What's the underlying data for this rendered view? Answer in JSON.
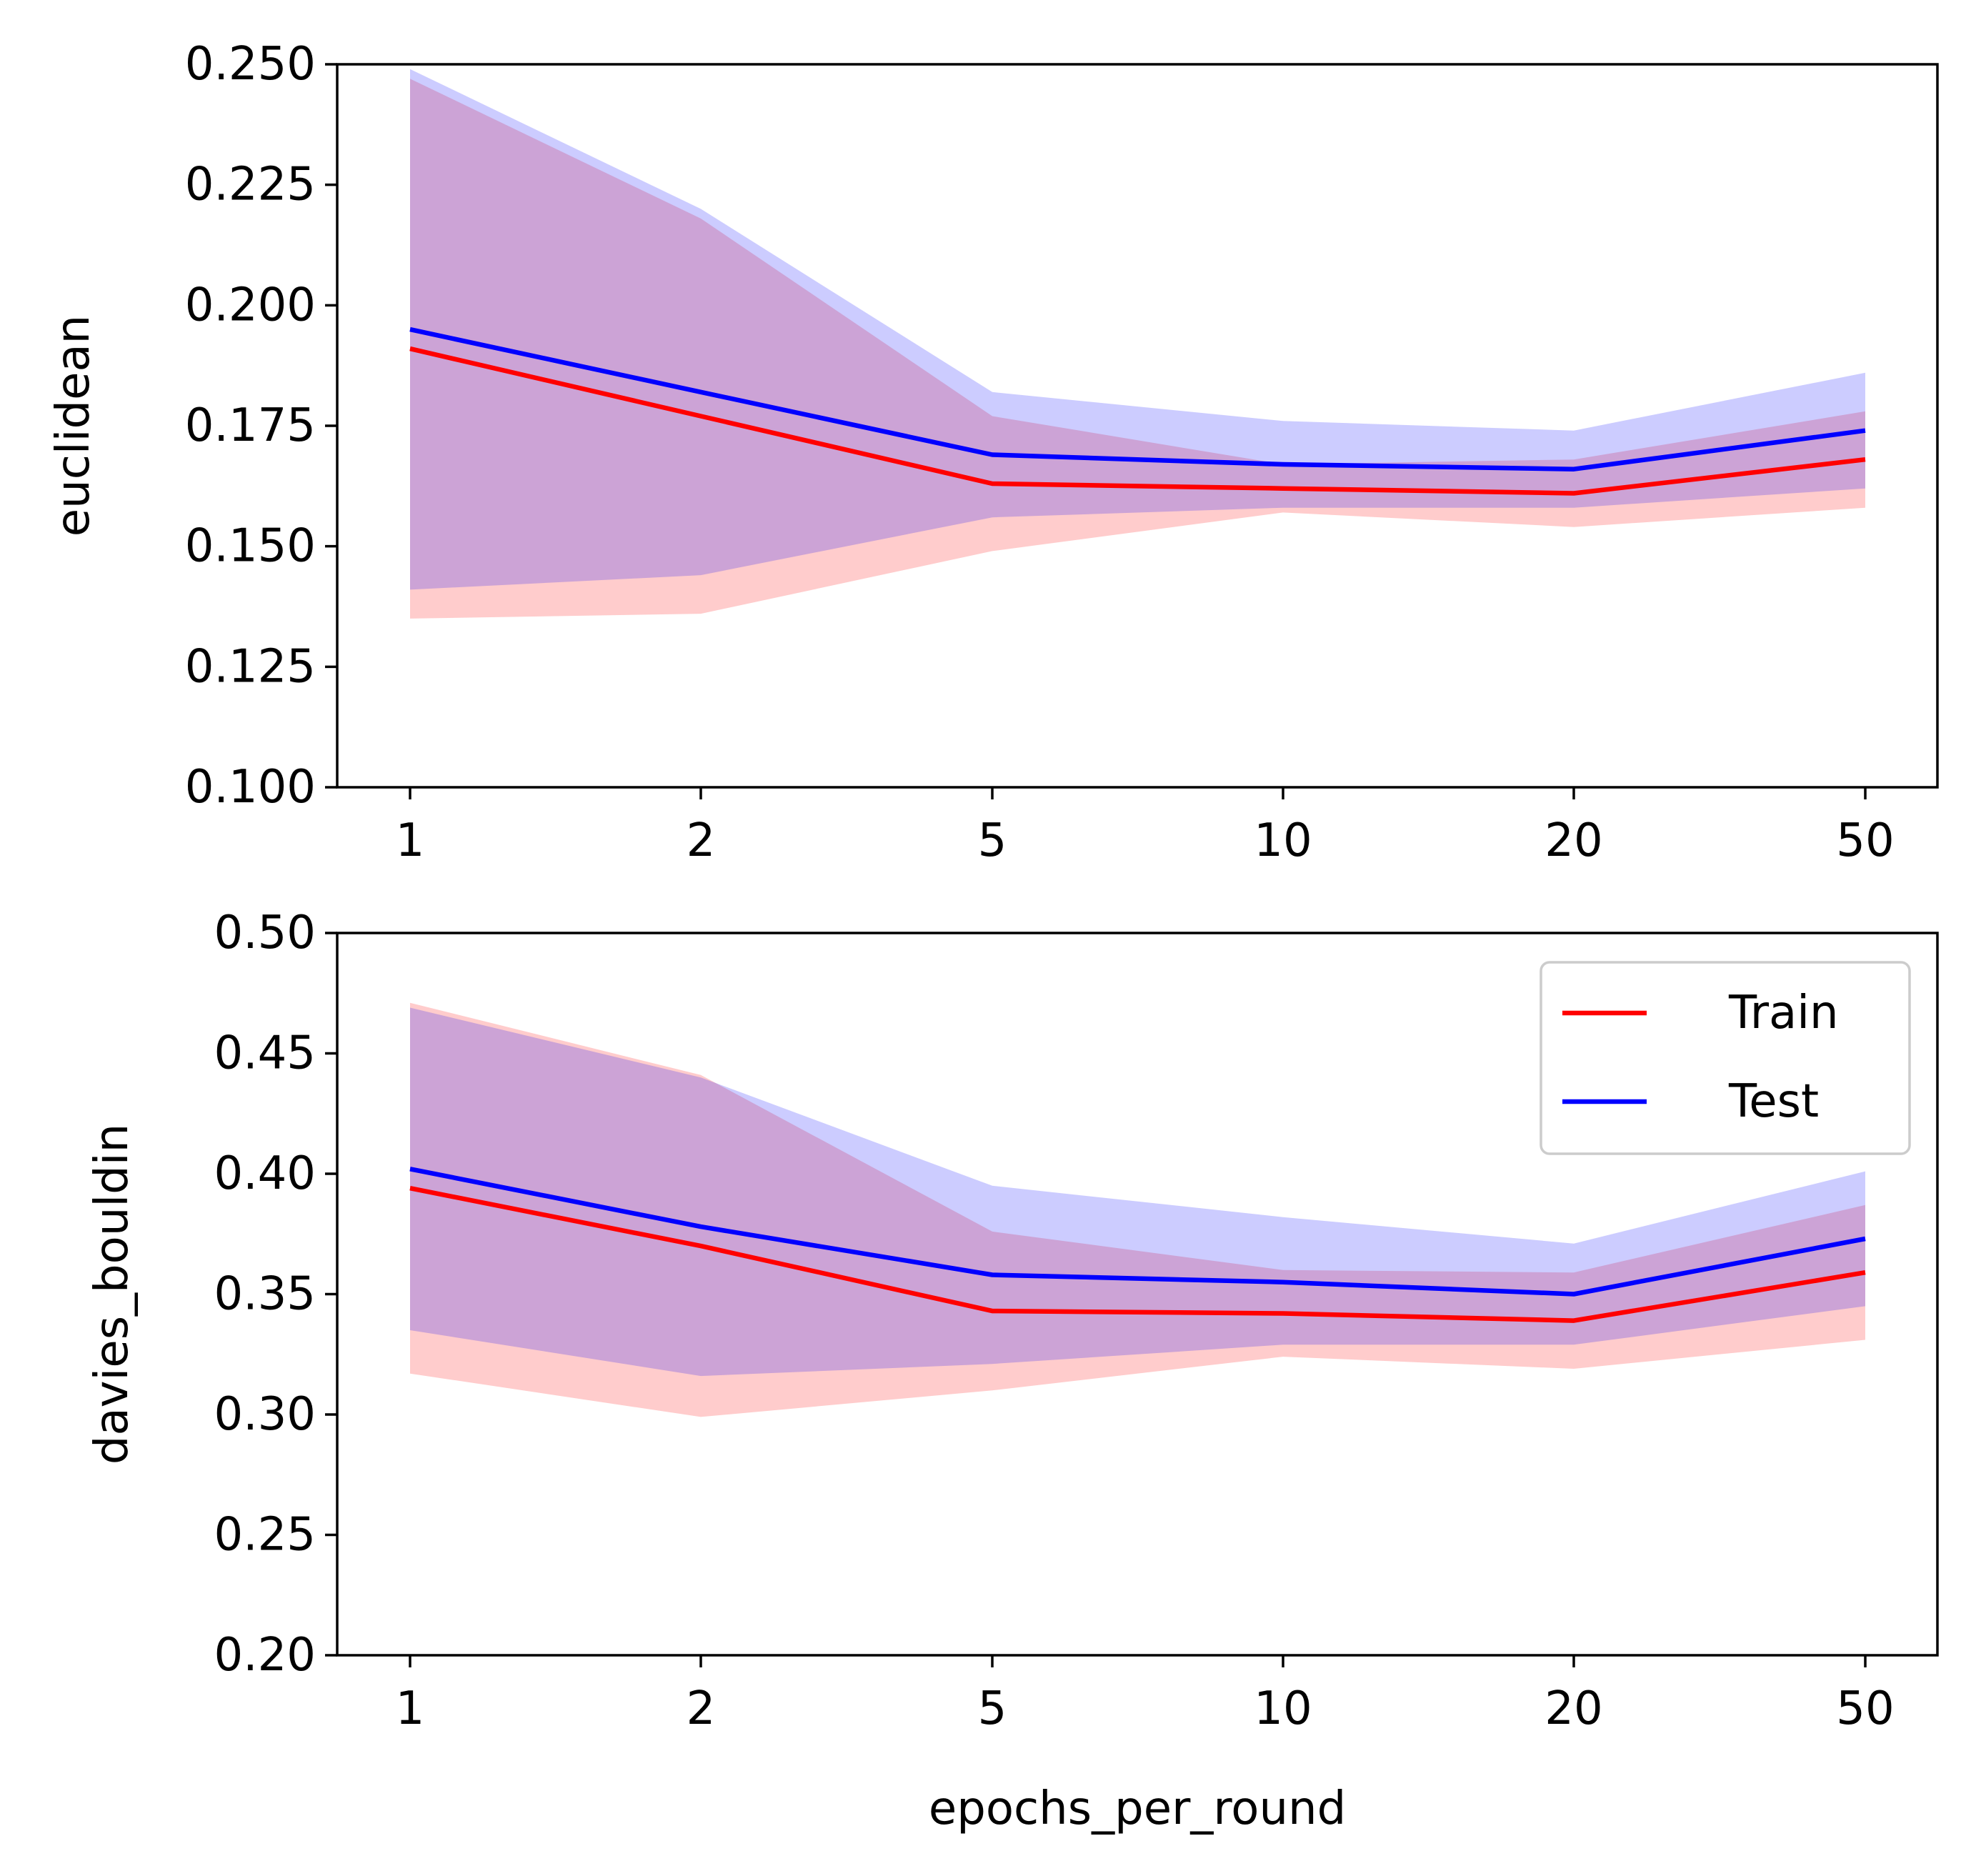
{
  "chart_data": [
    {
      "type": "line",
      "x": [
        "1",
        "2",
        "5",
        "10",
        "20",
        "50"
      ],
      "ylabel": "euclidean",
      "xlabel": "",
      "ylim": [
        0.1,
        0.25
      ],
      "yticks": [
        "0.100",
        "0.125",
        "0.150",
        "0.175",
        "0.200",
        "0.225",
        "0.250"
      ],
      "legend": false,
      "series": [
        {
          "name": "Train",
          "color": "#ff0000",
          "band_color": "#ff0000",
          "values": [
            0.191,
            0.177,
            0.163,
            0.162,
            0.161,
            0.168
          ],
          "lower": [
            0.135,
            0.136,
            0.149,
            0.157,
            0.154,
            0.158
          ],
          "upper": [
            0.247,
            0.218,
            0.177,
            0.167,
            0.168,
            0.178
          ]
        },
        {
          "name": "Test",
          "color": "#0000ff",
          "band_color": "#0000ff",
          "values": [
            0.195,
            0.182,
            0.169,
            0.167,
            0.166,
            0.174
          ],
          "lower": [
            0.141,
            0.144,
            0.156,
            0.158,
            0.158,
            0.162
          ],
          "upper": [
            0.249,
            0.22,
            0.182,
            0.176,
            0.174,
            0.186
          ]
        }
      ]
    },
    {
      "type": "line",
      "x": [
        "1",
        "2",
        "5",
        "10",
        "20",
        "50"
      ],
      "ylabel": "davies_bouldin",
      "xlabel": "epochs_per_round",
      "ylim": [
        0.2,
        0.5
      ],
      "yticks": [
        "0.20",
        "0.25",
        "0.30",
        "0.35",
        "0.40",
        "0.45",
        "0.50"
      ],
      "legend": true,
      "legend_position": "upper-right",
      "series": [
        {
          "name": "Train",
          "color": "#ff0000",
          "band_color": "#ff0000",
          "values": [
            0.394,
            0.37,
            0.343,
            0.342,
            0.339,
            0.359
          ],
          "lower": [
            0.317,
            0.299,
            0.31,
            0.324,
            0.319,
            0.331
          ],
          "upper": [
            0.471,
            0.441,
            0.376,
            0.36,
            0.359,
            0.387
          ]
        },
        {
          "name": "Test",
          "color": "#0000ff",
          "band_color": "#0000ff",
          "values": [
            0.402,
            0.378,
            0.358,
            0.355,
            0.35,
            0.373
          ],
          "lower": [
            0.335,
            0.316,
            0.321,
            0.329,
            0.329,
            0.345
          ],
          "upper": [
            0.469,
            0.44,
            0.395,
            0.382,
            0.371,
            0.401
          ]
        }
      ]
    }
  ]
}
